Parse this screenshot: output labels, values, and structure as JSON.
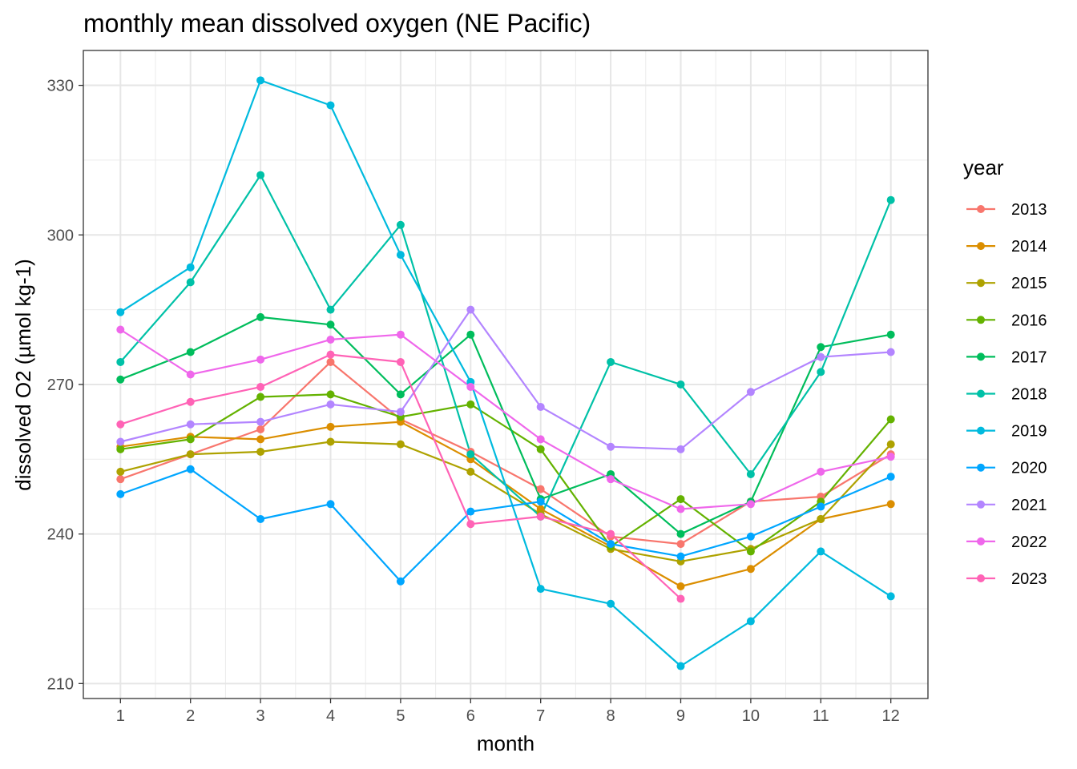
{
  "chart_data": {
    "type": "line",
    "title": "monthly mean dissolved oxygen (NE Pacific)",
    "xlabel": "month",
    "ylabel": "dissolved O2 (µmol kg-1)",
    "x": [
      1,
      2,
      3,
      4,
      5,
      6,
      7,
      8,
      9,
      10,
      11,
      12
    ],
    "x_tick_labels": [
      "1",
      "2",
      "3",
      "4",
      "5",
      "6",
      "7",
      "8",
      "9",
      "10",
      "11",
      "12"
    ],
    "y_ticks": [
      210,
      240,
      270,
      300,
      330
    ],
    "y_tick_labels": [
      "210",
      "240",
      "270",
      "300",
      "330"
    ],
    "xlim": [
      0.47,
      12.53
    ],
    "ylim": [
      207,
      337
    ],
    "grid": true,
    "legend": {
      "title": "year",
      "position": "right"
    },
    "series": [
      {
        "name": "2013",
        "color": "#F8766D",
        "values": [
          251,
          256,
          261,
          274.5,
          263,
          256.5,
          249,
          239.5,
          238,
          246.5,
          247.5,
          256
        ]
      },
      {
        "name": "2014",
        "color": "#DB8E00",
        "values": [
          257.5,
          259.5,
          259,
          261.5,
          262.5,
          255,
          245,
          237.5,
          229.5,
          233,
          243,
          246
        ]
      },
      {
        "name": "2015",
        "color": "#AEA200",
        "values": [
          252.5,
          256,
          256.5,
          258.5,
          258,
          252.5,
          244,
          237,
          234.5,
          237,
          243,
          258
        ]
      },
      {
        "name": "2016",
        "color": "#64B200",
        "values": [
          257,
          259,
          267.5,
          268,
          263.5,
          266,
          257,
          237.5,
          247,
          236.5,
          246.5,
          263
        ]
      },
      {
        "name": "2017",
        "color": "#00BD5C",
        "values": [
          271,
          276.5,
          283.5,
          282,
          268,
          280,
          247,
          252,
          240,
          246.5,
          277.5,
          280
        ]
      },
      {
        "name": "2018",
        "color": "#00C1A7",
        "values": [
          274.5,
          290.5,
          312,
          285,
          302,
          256,
          243.5,
          274.5,
          270,
          252,
          272.5,
          307
        ]
      },
      {
        "name": "2019",
        "color": "#00BADE",
        "values": [
          284.5,
          293.5,
          331,
          326,
          296,
          270.5,
          229,
          226,
          213.5,
          222.5,
          236.5,
          227.5
        ]
      },
      {
        "name": "2020",
        "color": "#00A6FF",
        "values": [
          248,
          253,
          243,
          246,
          230.5,
          244.5,
          246.5,
          238,
          235.5,
          239.5,
          245.5,
          251.5
        ]
      },
      {
        "name": "2021",
        "color": "#B385FF",
        "values": [
          258.5,
          262,
          262.5,
          266,
          264.5,
          285,
          265.5,
          257.5,
          257,
          268.5,
          275.5,
          276.5
        ]
      },
      {
        "name": "2022",
        "color": "#EF67EB",
        "values": [
          281,
          272,
          275,
          279,
          280,
          269.5,
          259,
          251,
          245,
          246,
          252.5,
          255.5
        ]
      },
      {
        "name": "2023",
        "color": "#FF63B6",
        "values": [
          262,
          266.5,
          269.5,
          276,
          274.5,
          242,
          243.5,
          240,
          227,
          null,
          null,
          null
        ]
      }
    ]
  }
}
